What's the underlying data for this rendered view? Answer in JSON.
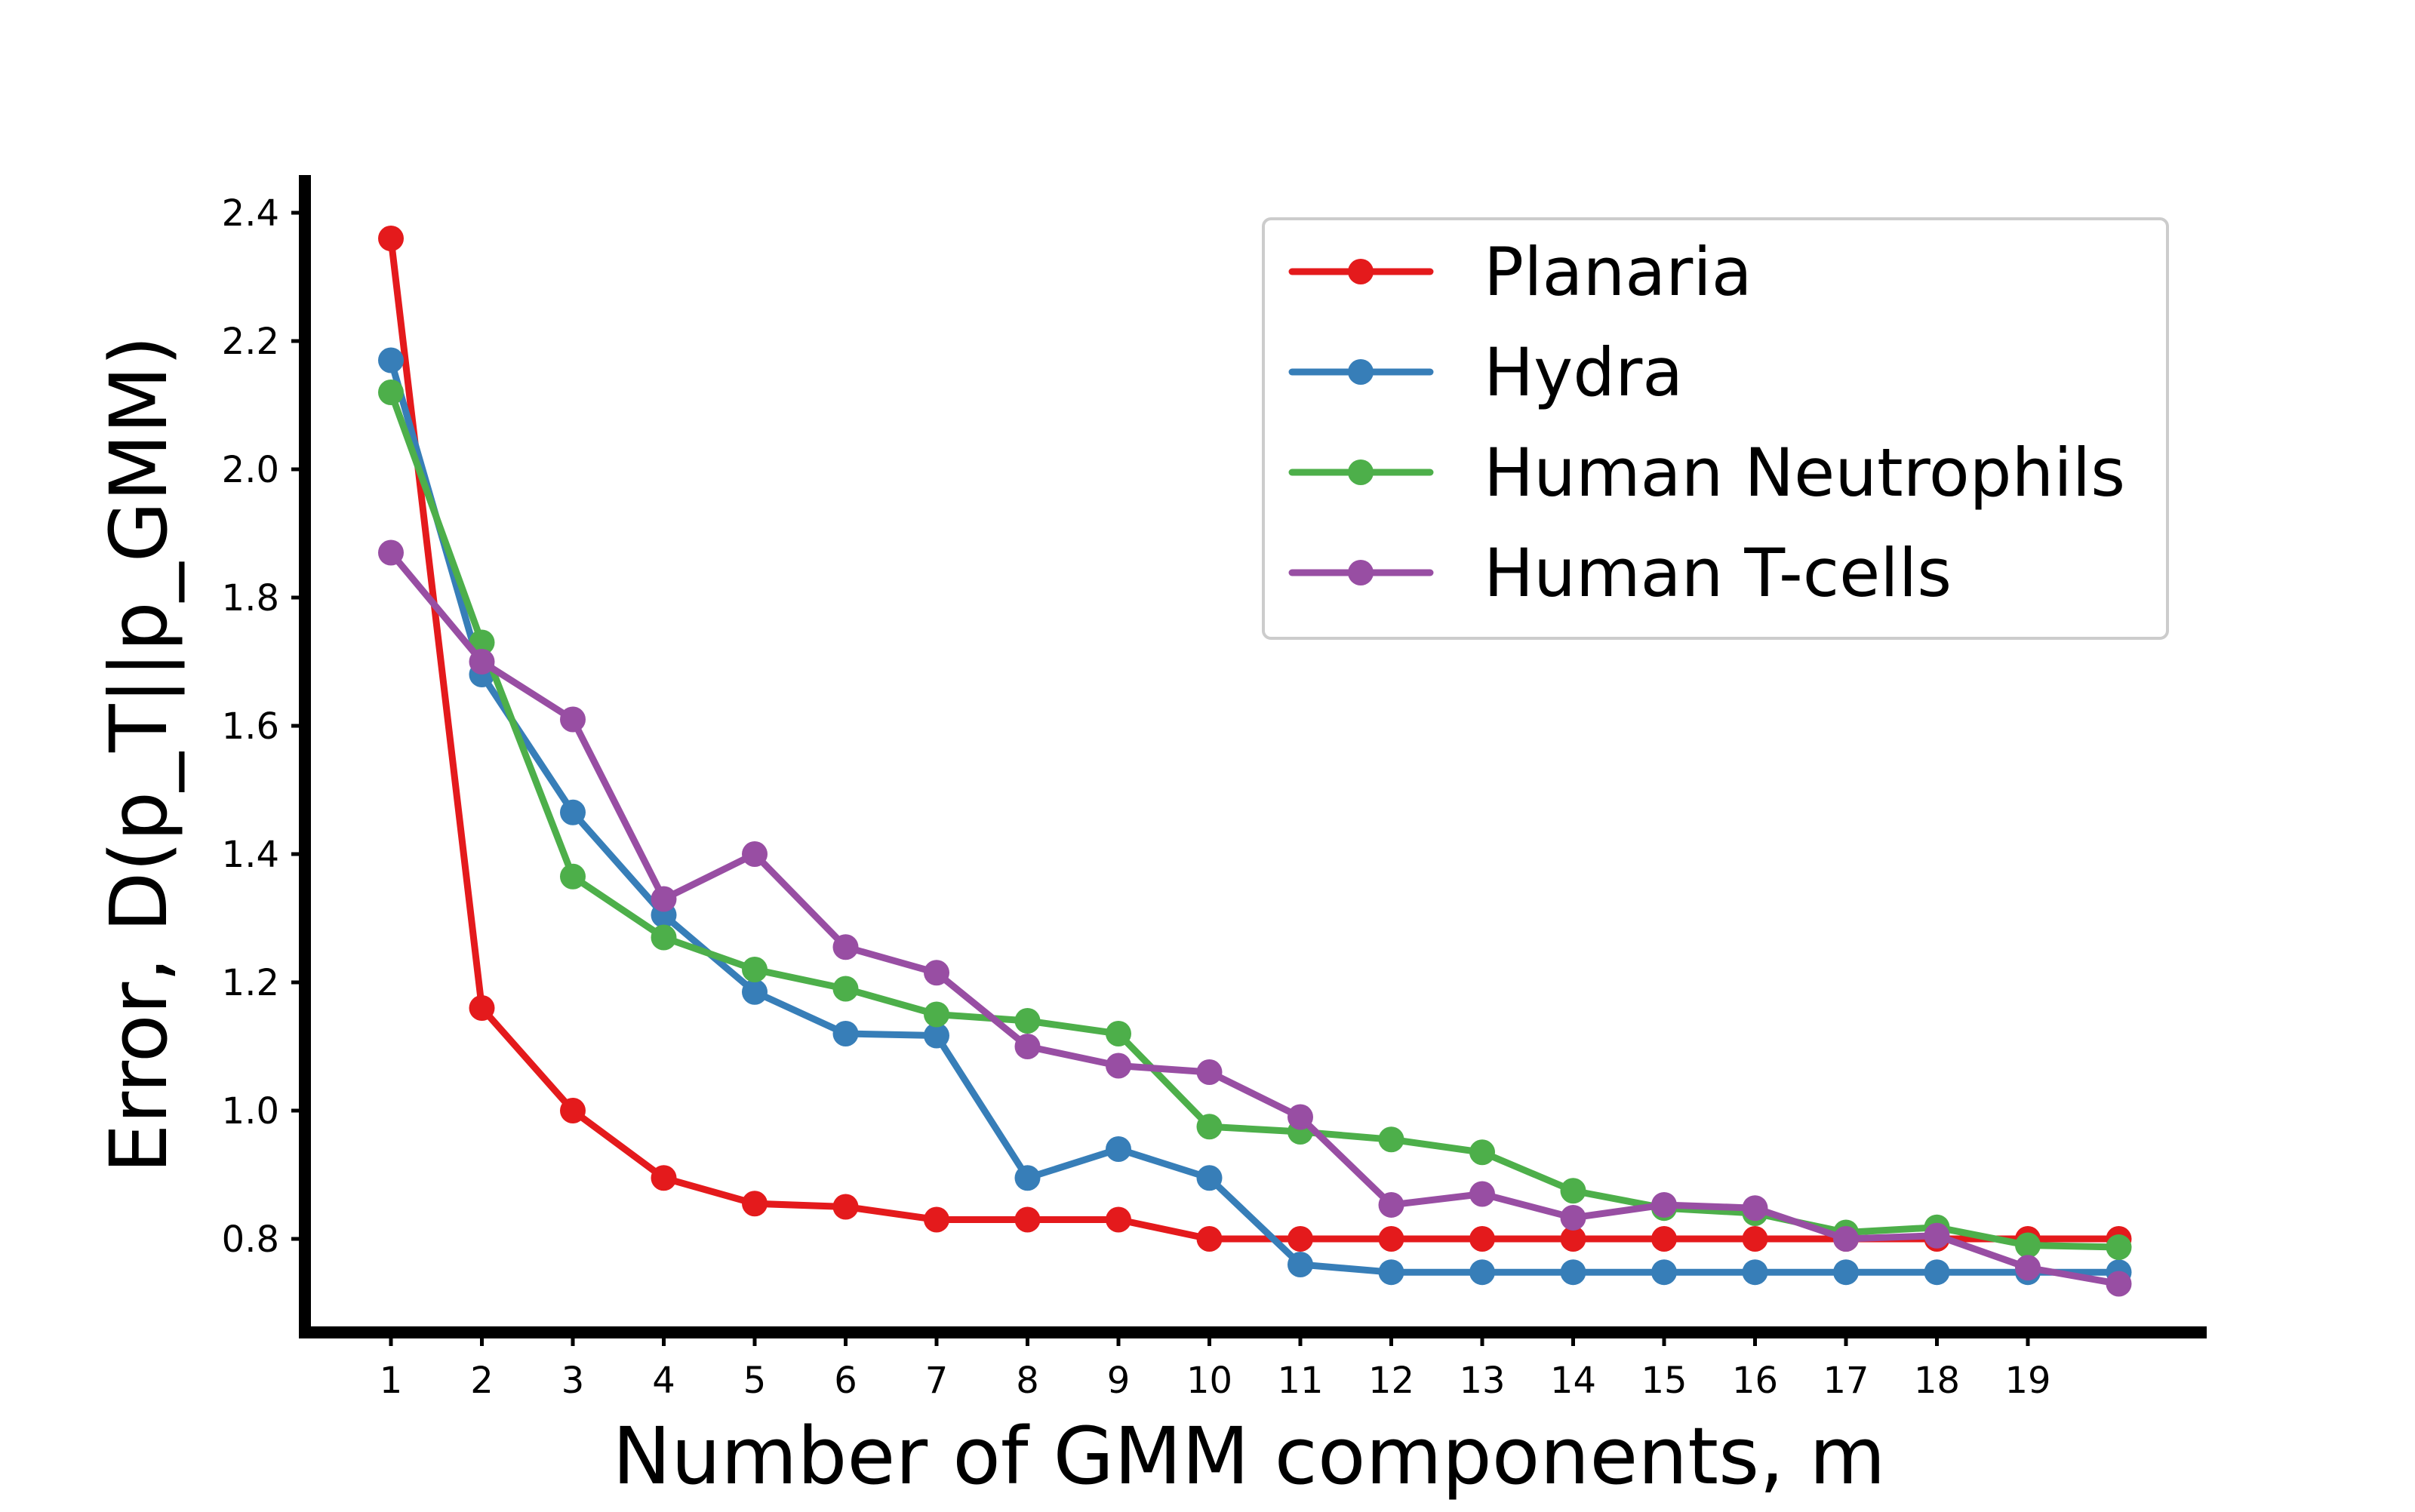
{
  "chart_data": {
    "type": "line",
    "title": "",
    "xlabel": "Number of GMM components, m",
    "ylabel": "Error, D(p_T||p_GMM)",
    "x": [
      1,
      2,
      3,
      4,
      5,
      6,
      7,
      8,
      9,
      10,
      11,
      12,
      13,
      14,
      15,
      16,
      17,
      18,
      19,
      20
    ],
    "x_tick_labels": [
      "1",
      "2",
      "3",
      "4",
      "5",
      "6",
      "7",
      "8",
      "9",
      "10",
      "11",
      "12",
      "13",
      "14",
      "15",
      "16",
      "17",
      "18",
      "19"
    ],
    "y_tick_labels": [
      "0.8",
      "1.0",
      "1.2",
      "1.4",
      "1.6",
      "1.8",
      "2.0",
      "2.2",
      "2.4"
    ],
    "xlim": [
      0.1,
      21.2
    ],
    "ylim": [
      0.66,
      2.45
    ],
    "grid": false,
    "legend_position": "top-right",
    "series": [
      {
        "name": "Planaria",
        "color": "#e41a1c",
        "values": [
          2.36,
          1.16,
          1.0,
          0.895,
          0.855,
          0.85,
          0.83,
          0.83,
          0.83,
          0.8,
          0.8,
          0.8,
          0.8,
          0.8,
          0.8,
          0.8,
          0.8,
          0.8,
          0.8,
          0.8
        ]
      },
      {
        "name": "Hydra",
        "color": "#377eb8",
        "values": [
          2.17,
          1.68,
          1.465,
          1.305,
          1.185,
          1.12,
          1.117,
          0.895,
          0.94,
          0.895,
          0.76,
          0.748,
          0.748,
          0.748,
          0.748,
          0.748,
          0.748,
          0.748,
          0.748,
          0.748
        ]
      },
      {
        "name": "Human Neutrophils",
        "color": "#4daf4a",
        "values": [
          2.12,
          1.73,
          1.365,
          1.27,
          1.22,
          1.19,
          1.15,
          1.14,
          1.12,
          0.975,
          0.967,
          0.955,
          0.935,
          0.875,
          0.848,
          0.84,
          0.81,
          0.818,
          0.79,
          0.787
        ]
      },
      {
        "name": "Human T-cells",
        "color": "#984ea3",
        "values": [
          1.87,
          1.7,
          1.61,
          1.33,
          1.4,
          1.255,
          1.215,
          1.1,
          1.07,
          1.06,
          0.99,
          0.853,
          0.87,
          0.833,
          0.853,
          0.848,
          0.8,
          0.805,
          0.755,
          0.73
        ]
      }
    ]
  }
}
